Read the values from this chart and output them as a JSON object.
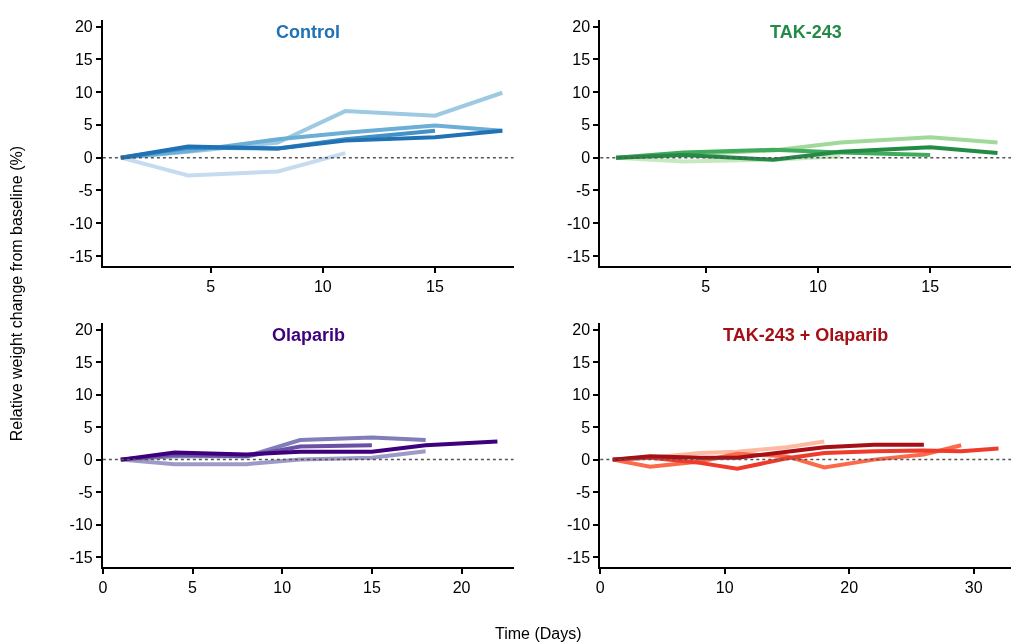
{
  "chart_data": [
    {
      "type": "line",
      "title": "Control",
      "ylabel": "Relative weight change from baseline (%)",
      "xlim": [
        0.2,
        18.5
      ],
      "xticks": [
        5,
        10,
        15
      ],
      "ylim": [
        -16.5,
        21
      ],
      "yticks": [
        -15,
        -10,
        -5,
        0,
        5,
        10,
        15,
        20
      ],
      "marker": "none",
      "line_style": "solid",
      "ref_lines": [
        {
          "axis": "y",
          "value": 0,
          "color": "#555555",
          "line_style": "dotted"
        }
      ],
      "series": [
        {
          "color": "#c6dbef",
          "x": [
            1,
            4,
            8,
            11
          ],
          "values": [
            0,
            -2.7,
            -2.1,
            0.7
          ]
        },
        {
          "color": "#9ecae1",
          "x": [
            1,
            4,
            8,
            11,
            15,
            18
          ],
          "values": [
            0,
            0.9,
            2.3,
            7.1,
            6.4,
            9.9
          ]
        },
        {
          "color": "#6baed6",
          "x": [
            1,
            4,
            8,
            11,
            15,
            18
          ],
          "values": [
            0,
            1.0,
            2.8,
            3.8,
            4.9,
            4.1
          ]
        },
        {
          "color": "#4292c6",
          "x": [
            1,
            4,
            8,
            11,
            15
          ],
          "values": [
            0,
            1.5,
            1.4,
            2.8,
            4.1
          ]
        },
        {
          "color": "#2171b5",
          "x": [
            1,
            4,
            8,
            11,
            15,
            18
          ],
          "values": [
            0,
            1.7,
            1.4,
            2.6,
            3.1,
            4.1
          ]
        }
      ]
    },
    {
      "type": "line",
      "title": "TAK-243",
      "xlim": [
        0.3,
        18.6
      ],
      "xticks": [
        5,
        10,
        15
      ],
      "ylim": [
        -16.5,
        21
      ],
      "yticks": [
        -15,
        -10,
        -5,
        0,
        5,
        10,
        15,
        20
      ],
      "marker": "none",
      "line_style": "solid",
      "ref_lines": [
        {
          "axis": "y",
          "value": 0,
          "color": "#555555",
          "line_style": "dotted"
        }
      ],
      "series": [
        {
          "color": "#c7e9c0",
          "x": [
            1,
            4,
            8,
            11
          ],
          "values": [
            0,
            -0.6,
            -0.3,
            0.2
          ]
        },
        {
          "color": "#a1d99b",
          "x": [
            1,
            4,
            8,
            11,
            15,
            18
          ],
          "values": [
            0,
            0.5,
            1.1,
            2.3,
            3.1,
            2.3
          ]
        },
        {
          "color": "#41ab5d",
          "x": [
            1,
            4,
            8,
            11,
            15
          ],
          "values": [
            0,
            0.8,
            1.2,
            0.8,
            0.4
          ]
        },
        {
          "color": "#238b45",
          "x": [
            1,
            4,
            8,
            11,
            15,
            18
          ],
          "values": [
            0,
            0.4,
            -0.3,
            0.9,
            1.6,
            0.7
          ]
        }
      ]
    },
    {
      "type": "line",
      "title": "Olaparib",
      "xlim": [
        0,
        22.9
      ],
      "xticks": [
        0,
        5,
        10,
        15,
        20
      ],
      "ylim": [
        -16.5,
        21
      ],
      "yticks": [
        -15,
        -10,
        -5,
        0,
        5,
        10,
        15,
        20
      ],
      "marker": "none",
      "line_style": "solid",
      "ref_lines": [
        {
          "axis": "y",
          "value": 0,
          "color": "#555555",
          "line_style": "dotted"
        }
      ],
      "series": [
        {
          "color": "#9e9ac8",
          "x": [
            1,
            4,
            8,
            11,
            15,
            18
          ],
          "values": [
            0,
            -0.7,
            -0.7,
            0,
            0.3,
            1.3
          ]
        },
        {
          "color": "#807dba",
          "x": [
            1,
            4,
            8,
            11,
            15,
            18
          ],
          "values": [
            0,
            0.5,
            0.5,
            3.0,
            3.4,
            3.0
          ]
        },
        {
          "color": "#6a51a3",
          "x": [
            1,
            4,
            8,
            11,
            15
          ],
          "values": [
            0,
            0.8,
            0.5,
            2.0,
            2.2
          ]
        },
        {
          "color": "#3f007d",
          "x": [
            1,
            4,
            8,
            11,
            15,
            18,
            22
          ],
          "values": [
            0,
            1.1,
            0.8,
            1.2,
            1.2,
            2.2,
            2.8
          ]
        }
      ]
    },
    {
      "type": "line",
      "title": "TAK-243 + Olaparib",
      "xlabel": "Time (Days)",
      "xlim": [
        0,
        33
      ],
      "xticks": [
        0,
        10,
        20,
        30
      ],
      "ylim": [
        -16.5,
        21
      ],
      "yticks": [
        -15,
        -10,
        -5,
        0,
        5,
        10,
        15,
        20
      ],
      "marker": "none",
      "line_style": "solid",
      "ref_lines": [
        {
          "axis": "y",
          "value": 0,
          "color": "#555555",
          "line_style": "dotted"
        }
      ],
      "series": [
        {
          "color": "#fcbba1",
          "x": [
            1,
            4,
            8,
            11,
            15,
            18
          ],
          "values": [
            0,
            0.3,
            1.0,
            1.2,
            1.9,
            2.8
          ]
        },
        {
          "color": "#fb6a4a",
          "x": [
            1,
            4,
            8,
            11,
            15,
            18,
            22,
            26,
            29
          ],
          "values": [
            0,
            -1.1,
            -0.3,
            0.9,
            0.5,
            -1.2,
            0,
            0.8,
            2.2
          ]
        },
        {
          "color": "#ef3b2c",
          "x": [
            1,
            4,
            8,
            11,
            15,
            18,
            22,
            26,
            29,
            32
          ],
          "values": [
            0,
            0.3,
            -0.5,
            -1.4,
            0.2,
            1.0,
            1.3,
            1.4,
            1.3,
            1.7
          ]
        },
        {
          "color": "#a50f15",
          "x": [
            1,
            4,
            8,
            11,
            15,
            18,
            22,
            26
          ],
          "values": [
            0,
            0.5,
            0.3,
            0.3,
            1.2,
            1.9,
            2.3,
            2.3
          ]
        }
      ]
    }
  ]
}
